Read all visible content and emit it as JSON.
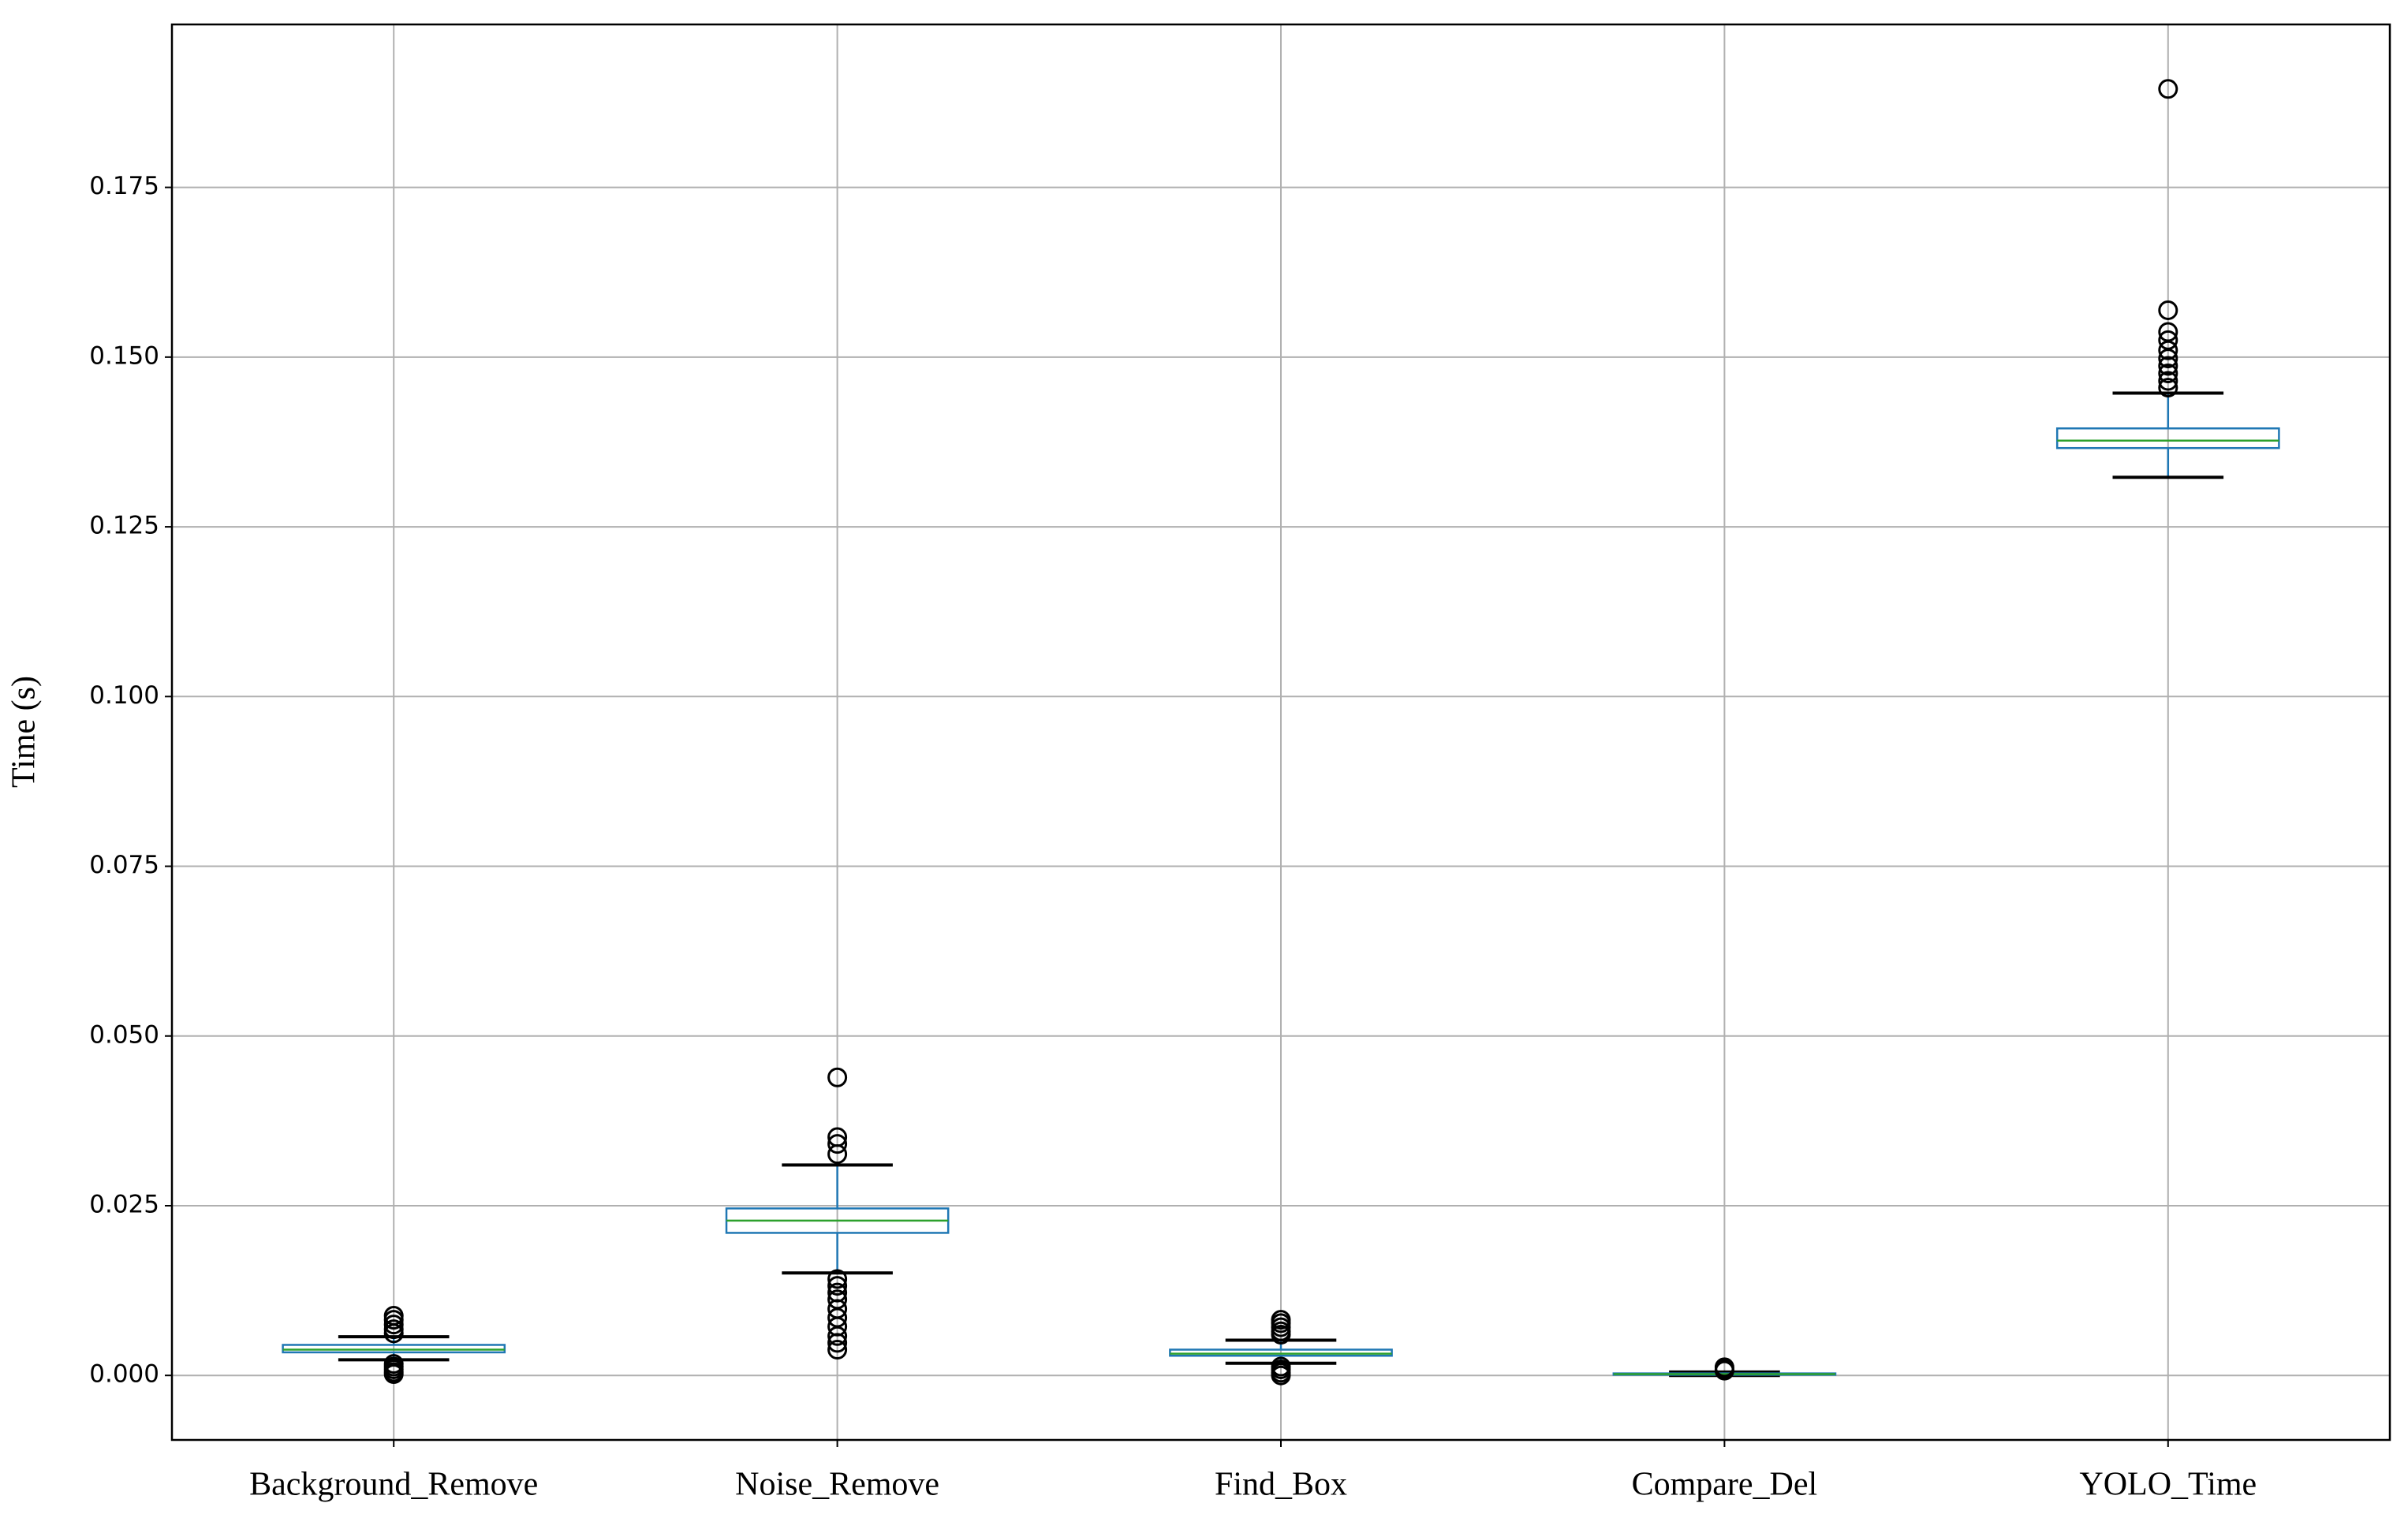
{
  "chart_data": {
    "type": "box",
    "y_label": "Time (s)",
    "categories": [
      "Background_Remove",
      "Noise_Remove",
      "Find_Box",
      "Compare_Del",
      "YOLO_Time"
    ],
    "boxes": [
      {
        "whislo": 0.0023,
        "q1": 0.0034,
        "med": 0.0038,
        "q3": 0.0045,
        "whishi": 0.0057,
        "fliers": [
          0.0088,
          0.0082,
          0.0075,
          0.0068,
          0.0062,
          0.0017,
          0.0013,
          0.0009,
          0.0005,
          0.0002
        ]
      },
      {
        "whislo": 0.0151,
        "q1": 0.021,
        "med": 0.0228,
        "q3": 0.0246,
        "whishi": 0.031,
        "fliers": [
          0.0439,
          0.0351,
          0.0341,
          0.0326,
          0.0142,
          0.0132,
          0.0122,
          0.0112,
          0.0098,
          0.0085,
          0.0072,
          0.0058,
          0.0048,
          0.0038
        ]
      },
      {
        "whislo": 0.0018,
        "q1": 0.0029,
        "med": 0.0032,
        "q3": 0.0038,
        "whishi": 0.0052,
        "fliers": [
          0.0082,
          0.0077,
          0.0071,
          0.0065,
          0.006,
          0.0013,
          0.0009,
          0.0004,
          0.0
        ]
      },
      {
        "whislo": 0.0,
        "q1": 0.0001,
        "med": 0.0002,
        "q3": 0.0003,
        "whishi": 0.0005,
        "fliers": [
          0.0012,
          0.0009,
          0.0007
        ]
      },
      {
        "whislo": 0.1323,
        "q1": 0.1366,
        "med": 0.1377,
        "q3": 0.1395,
        "whishi": 0.1447,
        "fliers": [
          0.1895,
          0.1569,
          0.1537,
          0.1525,
          0.151,
          0.1498,
          0.1487,
          0.1476,
          0.1465,
          0.1455
        ]
      }
    ],
    "box_color": "#1f77b4",
    "median_color": "#2ca02c",
    "whisker_color": "#000000",
    "flier_color": "#000000",
    "ylim": [
      -0.0095,
      0.199
    ],
    "yticks": [
      {
        "value": 0,
        "label": "0.000"
      },
      {
        "value": 0.025,
        "label": "0.025"
      },
      {
        "value": 0.05,
        "label": "0.050"
      },
      {
        "value": 0.075,
        "label": "0.075"
      },
      {
        "value": 0.1,
        "label": "0.100"
      },
      {
        "value": 0.125,
        "label": "0.125"
      },
      {
        "value": 0.15,
        "label": "0.150"
      },
      {
        "value": 0.175,
        "label": "0.175"
      }
    ],
    "grid": true
  }
}
